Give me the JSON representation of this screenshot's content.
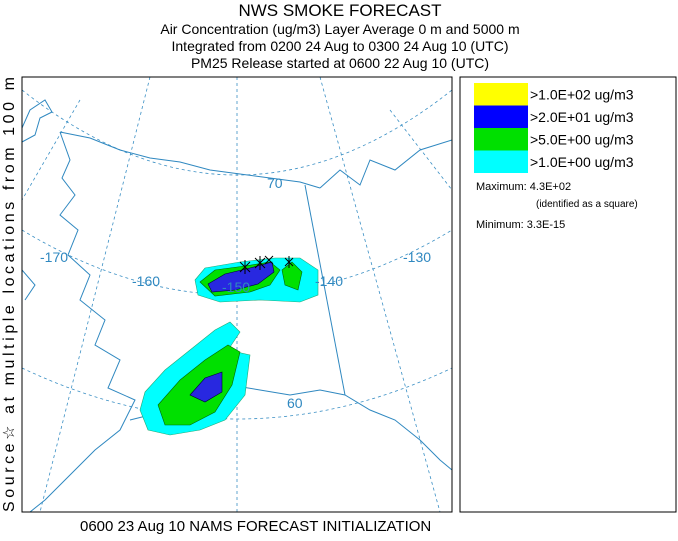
{
  "title": {
    "lines": [
      "NWS SMOKE FORECAST",
      "Air Concentration (ug/m3) Layer Average    0 m and  5000 m",
      "Integrated from 0200 24 Aug to 0300 24 Aug 10 (UTC)",
      "PM25 Release started at 0600 22 Aug 10 (UTC)"
    ]
  },
  "side_label": "Source☆ at multiple locations from  100 m",
  "map": {
    "lon_labels": [
      "-170",
      "-160",
      "-150",
      "-140",
      "-130"
    ],
    "lat_labels": [
      "70",
      "60"
    ]
  },
  "legend": {
    "entries": [
      {
        "label": ">1.0E+02 ug/m3",
        "color": "#ffff00"
      },
      {
        "label": ">2.0E+01 ug/m3",
        "color": "#0000ff"
      },
      {
        "label": ">5.0E+00 ug/m3",
        "color": "#00e000"
      },
      {
        "label": ">1.0E+00 ug/m3",
        "color": "#00ffff"
      }
    ],
    "maximum": "Maximum: 4.3E+02",
    "maximum_note": "(identified as a square)",
    "minimum": "Minimum: 3.3E-15"
  },
  "footer": "0600 23 Aug 10 NAMS FORECAST INITIALIZATION"
}
